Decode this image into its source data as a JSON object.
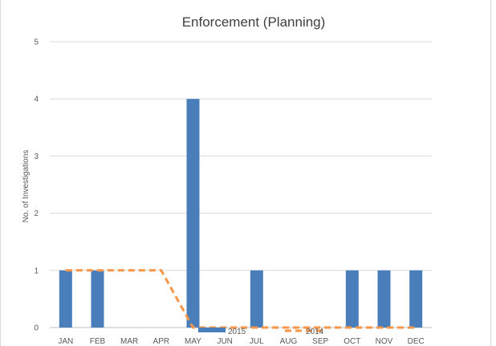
{
  "chart_data": {
    "type": "bar",
    "title": "Enforcement (Planning)",
    "xlabel": "",
    "ylabel": "No. of Investigations",
    "categories": [
      "JAN",
      "FEB",
      "MAR",
      "APR",
      "MAY",
      "JUN",
      "JUL",
      "AUG",
      "SEP",
      "OCT",
      "NOV",
      "DEC"
    ],
    "ylim": [
      0,
      5
    ],
    "yticks": [
      0,
      1,
      2,
      3,
      4,
      5
    ],
    "grid": true,
    "legend": "bottom",
    "series": [
      {
        "name": "2015",
        "type": "bar",
        "color": "#4a7ebb",
        "values": [
          1,
          1,
          0,
          0,
          4,
          0,
          1,
          0,
          0,
          1,
          1,
          1
        ]
      },
      {
        "name": "2014",
        "type": "line",
        "style": "dashed",
        "color": "#f79646",
        "values": [
          1,
          1,
          1,
          1,
          0,
          0,
          0,
          0,
          0,
          0,
          0,
          0
        ]
      }
    ]
  }
}
